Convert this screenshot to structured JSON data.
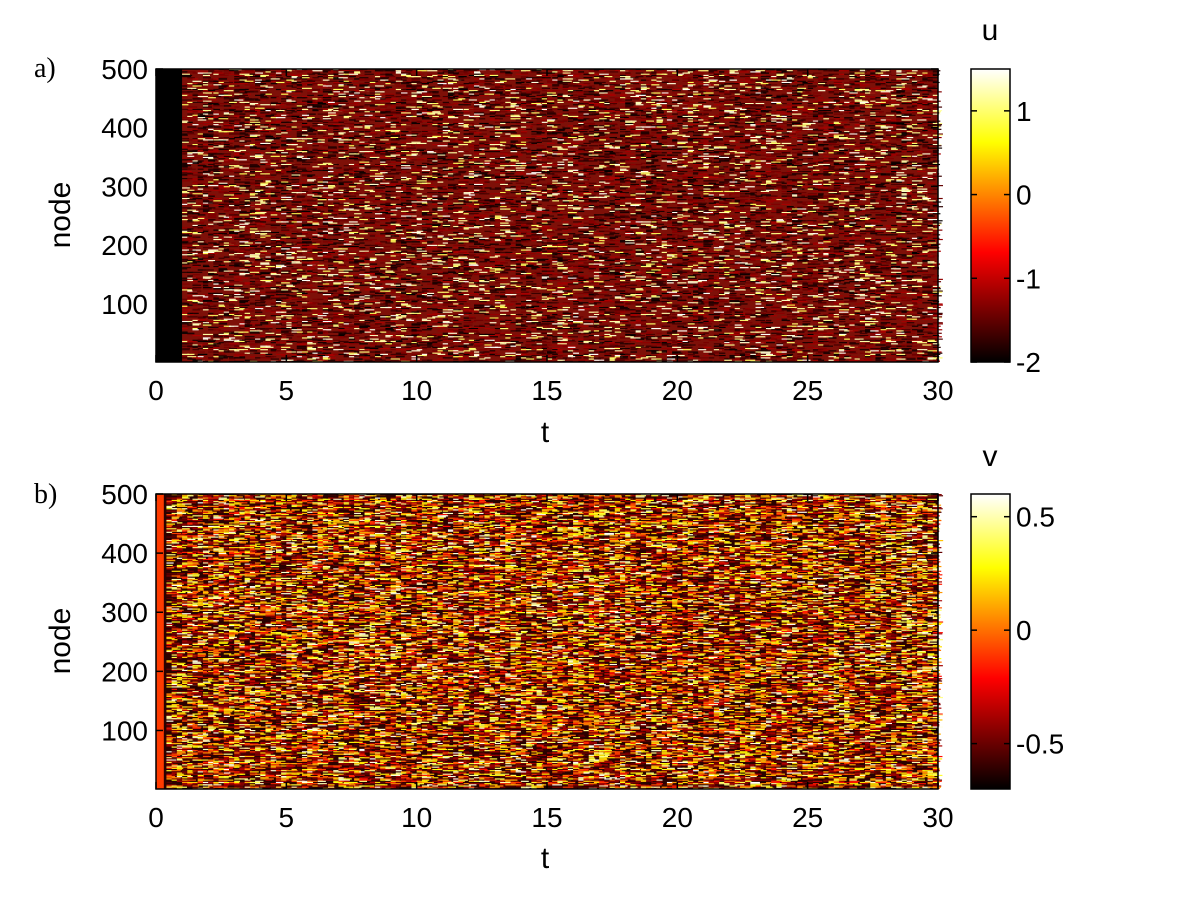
{
  "chart_data": [
    {
      "type": "heatmap",
      "panel_label": "a)",
      "xlabel": "t",
      "ylabel": "node",
      "xlim": [
        0,
        30
      ],
      "ylim": [
        1,
        500
      ],
      "xticks": [
        0,
        5,
        10,
        15,
        20,
        25,
        30
      ],
      "yticks": [
        100,
        200,
        300,
        400,
        500
      ],
      "colorbar": {
        "label": "u",
        "range": [
          -2,
          1.5
        ],
        "ticks": [
          -2,
          -1,
          0,
          1
        ],
        "colormap": "hot"
      },
      "pattern": {
        "initial_band_t": [
          0,
          1
        ],
        "initial_band_value": -2,
        "background_value": -1.2,
        "spike_value": 1.5
      }
    },
    {
      "type": "heatmap",
      "panel_label": "b)",
      "xlabel": "t",
      "ylabel": "node",
      "xlim": [
        0,
        30
      ],
      "ylim": [
        1,
        500
      ],
      "xticks": [
        0,
        5,
        10,
        15,
        20,
        25,
        30
      ],
      "yticks": [
        100,
        200,
        300,
        400,
        500
      ],
      "colorbar": {
        "label": "v",
        "range": [
          -0.7,
          0.6
        ],
        "ticks": [
          -0.5,
          0,
          0.5
        ],
        "colormap": "hot"
      },
      "pattern": {
        "initial_band_t": [
          0,
          0.3
        ],
        "initial_band_value": -0.1,
        "background_value": -0.55,
        "spike_value": 0.6
      }
    }
  ]
}
